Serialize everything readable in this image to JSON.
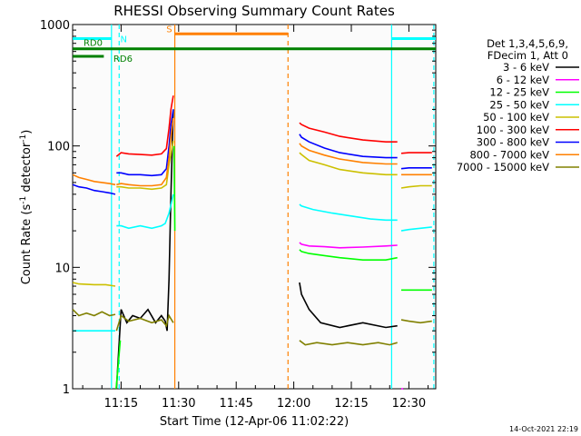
{
  "chart_data": {
    "type": "line",
    "title": "RHESSI Observing Summary Count Rates",
    "xlabel": "Start Time (12-Apr-06 11:02:22)",
    "ylabel_main": "Count Rate (s",
    "ylabel_sup1": "-1",
    "ylabel_mid": " detector",
    "ylabel_sup2": "-1",
    "ylabel_end": ")",
    "yscale": "log",
    "ylim": [
      1,
      1000
    ],
    "xlim_minutes": [
      2.37,
      97.0
    ],
    "x_ticks": [
      {
        "label": "11:15",
        "min": 15
      },
      {
        "label": "11:30",
        "min": 30
      },
      {
        "label": "11:45",
        "min": 45
      },
      {
        "label": "12:00",
        "min": 60
      },
      {
        "label": "12:15",
        "min": 75
      },
      {
        "label": "12:30",
        "min": 90
      }
    ],
    "y_ticks": [
      {
        "label": "1",
        "val": 1
      },
      {
        "label": "10",
        "val": 10
      },
      {
        "label": "100",
        "val": 100
      },
      {
        "label": "1000",
        "val": 1000
      }
    ],
    "legend_header": [
      "Det 1,3,4,5,6,9,",
      "FDecim 1, Att 0"
    ],
    "series": [
      {
        "name": "3 - 6 keV",
        "color": "#000000",
        "segments": [
          {
            "x": [
              13.8,
              15.0,
              16.5,
              18.0,
              20.0,
              22.0,
              24.0,
              25.5,
              26.5,
              27.0,
              27.5,
              28.0,
              28.6
            ],
            "y": [
              1.0,
              4.5,
              3.5,
              4.0,
              3.8,
              4.5,
              3.5,
              4.0,
              3.6,
              3.0,
              8.0,
              40.0,
              200.0
            ]
          },
          {
            "x": [
              61.5,
              62.0,
              64.0,
              67.0,
              72.0,
              78.0,
              84.0,
              87.0
            ],
            "y": [
              7.5,
              6.0,
              4.5,
              3.5,
              3.2,
              3.5,
              3.2,
              3.3
            ]
          }
        ]
      },
      {
        "name": "6 - 12 keV",
        "color": "#ff00ff",
        "segments": [
          {
            "x": [
              61.5,
              62.0,
              64.0,
              68.0,
              72.0,
              78.0,
              84.0,
              87.0
            ],
            "y": [
              16.0,
              15.5,
              15.0,
              14.8,
              14.5,
              14.7,
              15.0,
              15.2
            ]
          },
          {
            "x": [
              88.0,
              88.5
            ],
            "y": [
              1.0,
              1.0
            ]
          }
        ]
      },
      {
        "name": "12 - 25 keV",
        "color": "#00ff00",
        "segments": [
          {
            "x": [
              13.7,
              14.2,
              14.8
            ],
            "y": [
              1.0,
              1.5,
              2.5
            ]
          },
          {
            "x": [
              28.8,
              29.0
            ],
            "y": [
              100.0,
              20.0
            ]
          },
          {
            "x": [
              61.5,
              62.0,
              64.0,
              68.0,
              72.0,
              78.0,
              84.0,
              87.0
            ],
            "y": [
              14.0,
              13.5,
              13.0,
              12.5,
              12.0,
              11.5,
              11.5,
              12.0
            ]
          },
          {
            "x": [
              88.0,
              90.0,
              93.0,
              96.0
            ],
            "y": [
              6.5,
              6.5,
              6.5,
              6.5
            ]
          }
        ]
      },
      {
        "name": "25 - 50 keV",
        "color": "#00ffff",
        "segments": [
          {
            "x": [
              2.4,
              4.0,
              8.0,
              12.0,
              13.5
            ],
            "y": [
              3.0,
              3.0,
              3.0,
              3.0,
              3.0
            ]
          },
          {
            "x": [
              13.8,
              15.0,
              17.0,
              20.0,
              23.0,
              25.5,
              26.5,
              27.5,
              28.6
            ],
            "y": [
              22.0,
              22.0,
              21.0,
              22.0,
              21.0,
              22.0,
              23.0,
              28.0,
              40.0
            ]
          },
          {
            "x": [
              61.5,
              62.0,
              65.0,
              70.0,
              75.0,
              80.0,
              84.0,
              87.0
            ],
            "y": [
              33.0,
              32.0,
              30.0,
              28.0,
              26.5,
              25.0,
              24.5,
              24.5
            ]
          },
          {
            "x": [
              88.0,
              90.0,
              93.0,
              96.0
            ],
            "y": [
              20.0,
              20.5,
              21.0,
              21.5
            ]
          }
        ]
      },
      {
        "name": "50 - 100 keV",
        "color": "#ccc000",
        "segments": [
          {
            "x": [
              2.4,
              4.0,
              8.0,
              11.0,
              13.5
            ],
            "y": [
              7.5,
              7.3,
              7.2,
              7.2,
              7.0
            ]
          },
          {
            "x": [
              13.8,
              15.0,
              17.0,
              20.0,
              23.0,
              25.5,
              26.8,
              27.5,
              28.6
            ],
            "y": [
              46.0,
              46.0,
              45.0,
              45.0,
              44.0,
              45.0,
              48.0,
              70.0,
              110.0
            ]
          },
          {
            "x": [
              61.5,
              62.0,
              64.0,
              68.0,
              72.0,
              78.0,
              84.0,
              87.0
            ],
            "y": [
              88.0,
              85.0,
              76.0,
              70.0,
              64.0,
              60.0,
              58.0,
              58.0
            ]
          },
          {
            "x": [
              88.0,
              90.0,
              93.0,
              96.0
            ],
            "y": [
              45.0,
              46.0,
              47.0,
              47.0
            ]
          }
        ]
      },
      {
        "name": "100 - 300 keV",
        "color": "#ff0000",
        "segments": [
          {
            "x": [
              13.8,
              15.0,
              17.0,
              20.0,
              23.0,
              25.5,
              26.8,
              27.5,
              28.0,
              28.6
            ],
            "y": [
              82.0,
              88.0,
              86.0,
              85.0,
              84.0,
              86.0,
              95.0,
              140.0,
              200.0,
              260.0
            ]
          },
          {
            "x": [
              61.5,
              62.0,
              64.0,
              68.0,
              72.0,
              78.0,
              84.0,
              87.0
            ],
            "y": [
              155.0,
              150.0,
              140.0,
              130.0,
              120.0,
              112.0,
              108.0,
              108.0
            ]
          },
          {
            "x": [
              88.0,
              90.0,
              93.0,
              96.0
            ],
            "y": [
              87.0,
              88.0,
              88.0,
              88.0
            ]
          }
        ]
      },
      {
        "name": "300 - 800 keV",
        "color": "#0000ff",
        "segments": [
          {
            "x": [
              2.4,
              4.0,
              6.0,
              8.0,
              10.0,
              12.0,
              13.5
            ],
            "y": [
              48.0,
              46.0,
              45.0,
              43.0,
              42.0,
              41.0,
              40.0
            ]
          },
          {
            "x": [
              13.8,
              15.0,
              17.0,
              20.0,
              23.0,
              25.5,
              26.8,
              27.5,
              28.0,
              28.6
            ],
            "y": [
              60.0,
              60.0,
              58.0,
              58.0,
              57.0,
              58.0,
              65.0,
              100.0,
              150.0,
              200.0
            ]
          },
          {
            "x": [
              61.5,
              62.0,
              64.0,
              68.0,
              72.0,
              78.0,
              84.0,
              87.0
            ],
            "y": [
              125.0,
              118.0,
              108.0,
              96.0,
              88.0,
              82.0,
              80.0,
              80.0
            ]
          },
          {
            "x": [
              88.0,
              90.0,
              93.0,
              96.0
            ],
            "y": [
              65.0,
              66.0,
              66.0,
              66.0
            ]
          }
        ]
      },
      {
        "name": "800 - 7000 keV",
        "color": "#ff8000",
        "segments": [
          {
            "x": [
              2.4,
              4.0,
              6.0,
              8.0,
              10.0,
              12.0,
              13.5
            ],
            "y": [
              58.0,
              55.0,
              53.0,
              51.0,
              50.0,
              49.0,
              48.0
            ]
          },
          {
            "x": [
              13.8,
              15.0,
              17.0,
              20.0,
              23.0,
              25.5,
              26.8,
              27.5,
              28.0,
              28.6
            ],
            "y": [
              48.0,
              49.0,
              48.0,
              47.0,
              47.0,
              48.0,
              55.0,
              80.0,
              120.0,
              170.0
            ]
          },
          {
            "x": [
              61.5,
              62.0,
              64.0,
              68.0,
              72.0,
              78.0,
              84.0,
              87.0
            ],
            "y": [
              105.0,
              100.0,
              92.0,
              84.0,
              78.0,
              73.0,
              71.0,
              71.0
            ]
          },
          {
            "x": [
              88.0,
              90.0,
              93.0,
              96.0
            ],
            "y": [
              58.0,
              58.0,
              58.0,
              58.0
            ]
          }
        ]
      },
      {
        "name": "7000 - 15000 keV",
        "color": "#808000",
        "segments": [
          {
            "x": [
              2.4,
              4.0,
              6.0,
              8.0,
              10.0,
              12.0,
              13.5
            ],
            "y": [
              4.5,
              4.0,
              4.2,
              4.0,
              4.3,
              4.0,
              4.1
            ]
          },
          {
            "x": [
              13.8,
              15.0,
              17.0,
              20.0,
              23.0,
              25.5,
              26.8,
              27.5,
              28.6
            ],
            "y": [
              3.0,
              4.0,
              3.6,
              3.8,
              3.5,
              3.7,
              3.3,
              4.0,
              3.5
            ]
          },
          {
            "x": [
              61.5,
              63.0,
              66.0,
              70.0,
              74.0,
              78.0,
              82.0,
              85.0,
              87.0
            ],
            "y": [
              2.5,
              2.3,
              2.4,
              2.3,
              2.4,
              2.3,
              2.4,
              2.3,
              2.4
            ]
          },
          {
            "x": [
              88.0,
              90.0,
              93.0,
              96.0
            ],
            "y": [
              3.7,
              3.6,
              3.5,
              3.6
            ]
          }
        ]
      }
    ],
    "flags": [
      {
        "label": "N",
        "color": "#00ffff",
        "lines": [
          {
            "x1": 2.4,
            "x2": 12.5
          },
          {
            "x1": 85.5,
            "x2": 97.0
          }
        ],
        "level": 0.9615
      },
      {
        "label": "RD0",
        "color": "#008000",
        "lines": [
          {
            "x1": 2.4,
            "x2": 97.0
          }
        ],
        "level": 0.9333
      },
      {
        "label": "RD6",
        "color": "#008000",
        "lines": [
          {
            "x1": 2.4,
            "x2": 10.5
          }
        ],
        "level": 0.9128
      },
      {
        "label": "S",
        "color": "#ff8000",
        "lines": [
          {
            "x1": 29.0,
            "x2": 58.5
          }
        ],
        "level": 0.9744
      }
    ],
    "vlines": [
      {
        "x": 12.5,
        "color": "#00ffff",
        "dashed": false
      },
      {
        "x": 14.5,
        "color": "#00ffff",
        "dashed": true
      },
      {
        "x": 29.0,
        "color": "#ff8000",
        "dashed": false
      },
      {
        "x": 58.5,
        "color": "#ff8000",
        "dashed": true
      },
      {
        "x": 85.5,
        "color": "#00ffff",
        "dashed": false
      },
      {
        "x": 96.5,
        "color": "#00ffff",
        "dashed": true
      }
    ],
    "timestamp": "14-Oct-2021 22:19"
  }
}
